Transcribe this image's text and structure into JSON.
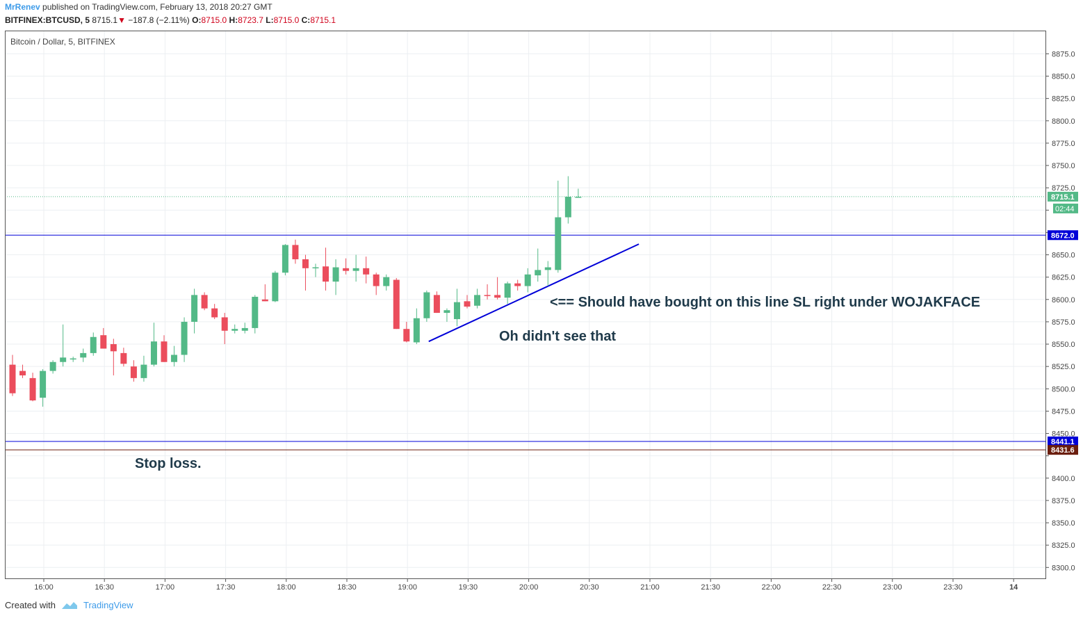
{
  "header": {
    "author": "MrRenev",
    "published": "published on TradingView.com, February 13, 2018 20:27 GMT",
    "symbol": "BITFINEX:BTCUSD, 5",
    "last": "8715.1",
    "change": "−187.8 (−2.11%)",
    "open_label": "O:",
    "open": "8715.0",
    "high_label": "H:",
    "high": "8723.7",
    "low_label": "L:",
    "low": "8715.0",
    "close_label": "C:",
    "close": "8715.1"
  },
  "chart_title": "Bitcoin / Dollar, 5, BITFINEX",
  "footer": {
    "created": "Created with",
    "brand": "TradingView"
  },
  "annotations": {
    "line_note": "<== Should have bought on this line SL right under WOJAKFACE",
    "trend_note": "Oh didn't see that",
    "stop_note": "Stop loss."
  },
  "colors": {
    "up": "#53b987",
    "down": "#eb4d5c",
    "blue": "#0000d8",
    "brown": "#6b1e0e"
  },
  "chart_data": {
    "type": "candlestick",
    "y_ticks": [
      8300,
      8325,
      8350,
      8375,
      8400,
      8425,
      8450,
      8475,
      8500,
      8525,
      8550,
      8575,
      8600,
      8625,
      8650,
      8675,
      8700,
      8725,
      8750,
      8775,
      8800,
      8825,
      8850,
      8875
    ],
    "y_tick_labels": [
      "8300.0",
      "8325.0",
      "8350.0",
      "8375.0",
      "8400.0",
      "",
      "8450.0",
      "8475.0",
      "8500.0",
      "8525.0",
      "8550.0",
      "8575.0",
      "8600.0",
      "8625.0",
      "8650.0",
      "",
      "",
      "8725.0",
      "8750.0",
      "8775.0",
      "8800.0",
      "8825.0",
      "8850.0",
      "8875.0"
    ],
    "ylim": [
      8287,
      8901
    ],
    "x_ticks": [
      "16:00",
      "16:30",
      "17:00",
      "17:30",
      "18:00",
      "18:30",
      "19:00",
      "19:30",
      "20:00",
      "20:30",
      "21:00",
      "21:30",
      "22:00",
      "22:30",
      "23:00",
      "23:30",
      "14"
    ],
    "candles": [
      [
        8527,
        8538,
        8492,
        8495
      ],
      [
        8520,
        8527,
        8512,
        8515
      ],
      [
        8512,
        8518,
        8486,
        8487
      ],
      [
        8490,
        8522,
        8480,
        8520
      ],
      [
        8520,
        8532,
        8517,
        8530
      ],
      [
        8530,
        8572,
        8525,
        8535
      ],
      [
        8533,
        8536,
        8530,
        8534
      ],
      [
        8535,
        8545,
        8530,
        8540
      ],
      [
        8540,
        8563,
        8537,
        8558
      ],
      [
        8560,
        8568,
        8545,
        8545
      ],
      [
        8550,
        8556,
        8515,
        8542
      ],
      [
        8540,
        8546,
        8525,
        8528
      ],
      [
        8525,
        8532,
        8508,
        8512
      ],
      [
        8512,
        8537,
        8508,
        8527
      ],
      [
        8527,
        8574,
        8525,
        8553
      ],
      [
        8553,
        8560,
        8530,
        8530
      ],
      [
        8530,
        8548,
        8525,
        8538
      ],
      [
        8538,
        8580,
        8530,
        8575
      ],
      [
        8575,
        8612,
        8562,
        8605
      ],
      [
        8605,
        8608,
        8588,
        8590
      ],
      [
        8590,
        8595,
        8578,
        8580
      ],
      [
        8580,
        8585,
        8550,
        8565
      ],
      [
        8565,
        8572,
        8562,
        8567
      ],
      [
        8565,
        8574,
        8562,
        8568
      ],
      [
        8568,
        8605,
        8562,
        8603
      ],
      [
        8600,
        8617,
        8598,
        8598
      ],
      [
        8598,
        8632,
        8597,
        8630
      ],
      [
        8630,
        8662,
        8627,
        8661
      ],
      [
        8661,
        8667,
        8640,
        8645
      ],
      [
        8645,
        8650,
        8610,
        8635
      ],
      [
        8635,
        8640,
        8625,
        8636
      ],
      [
        8637,
        8658,
        8610,
        8620
      ],
      [
        8620,
        8645,
        8605,
        8636
      ],
      [
        8635,
        8646,
        8628,
        8632
      ],
      [
        8632,
        8650,
        8620,
        8635
      ],
      [
        8635,
        8648,
        8618,
        8628
      ],
      [
        8628,
        8630,
        8605,
        8615
      ],
      [
        8615,
        8628,
        8610,
        8625
      ],
      [
        8622,
        8624,
        8567,
        8567
      ],
      [
        8567,
        8575,
        8552,
        8553
      ],
      [
        8552,
        8590,
        8550,
        8579
      ],
      [
        8579,
        8610,
        8575,
        8608
      ],
      [
        8605,
        8609,
        8585,
        8585
      ],
      [
        8585,
        8590,
        8575,
        8588
      ],
      [
        8578,
        8612,
        8570,
        8597
      ],
      [
        8598,
        8605,
        8590,
        8592
      ],
      [
        8593,
        8612,
        8590,
        8605
      ],
      [
        8605,
        8617,
        8600,
        8604
      ],
      [
        8605,
        8625,
        8600,
        8602
      ],
      [
        8602,
        8620,
        8595,
        8618
      ],
      [
        8618,
        8622,
        8610,
        8615
      ],
      [
        8615,
        8635,
        8608,
        8628
      ],
      [
        8627,
        8657,
        8620,
        8633
      ],
      [
        8633,
        8643,
        8615,
        8636
      ],
      [
        8633,
        8733,
        8630,
        8692
      ],
      [
        8692,
        8738,
        8685,
        8715
      ],
      [
        8715,
        8724,
        8715,
        8715
      ]
    ],
    "price_lines": [
      {
        "label": "8715.1",
        "value": 8715.1,
        "style": "dotted",
        "color": "#53b987"
      },
      {
        "label": "8672.0",
        "value": 8672.0,
        "style": "solid",
        "color": "#0000d8"
      },
      {
        "label": "8441.1",
        "value": 8441.1,
        "style": "solid",
        "color": "#0000d8"
      },
      {
        "label": "8431.6",
        "value": 8431.6,
        "style": "solid",
        "color": "#6b1e0e"
      }
    ],
    "countdown": "02:44",
    "trendline": {
      "from": [
        41.2,
        8553
      ],
      "to": [
        62.0,
        8662
      ]
    }
  }
}
